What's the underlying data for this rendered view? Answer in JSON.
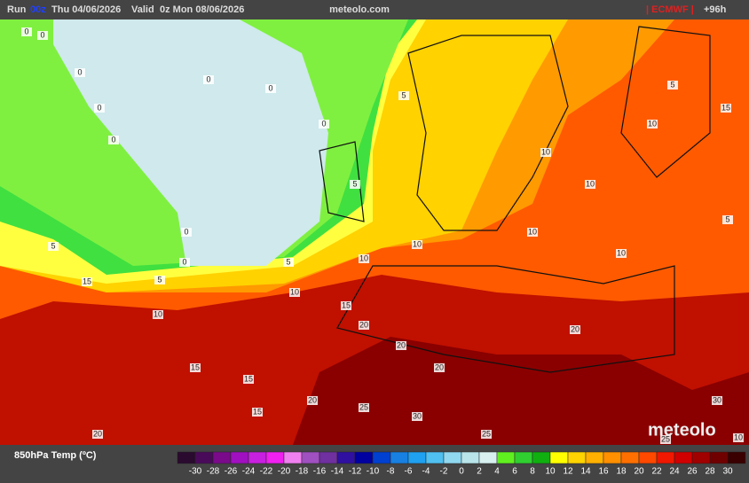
{
  "header": {
    "run": "Run",
    "run_time": "00z",
    "run_date": "Thu 04/06/2026",
    "valid": "Valid",
    "valid_date": "0z Mon 08/06/2026",
    "site": "meteolo.com",
    "model": "| ECMWF |",
    "lead": "+96h"
  },
  "map": {
    "contour_labels": [
      0,
      0,
      0,
      0,
      0,
      0,
      0,
      0,
      0,
      0,
      5,
      5,
      5,
      5,
      5,
      10,
      10,
      10,
      10,
      10,
      10,
      10,
      10,
      10,
      15,
      15,
      15,
      15,
      15,
      20,
      20,
      20,
      20,
      20,
      25,
      25,
      30,
      30,
      10,
      5,
      5,
      15,
      20,
      25
    ]
  },
  "watermark": "meteolo",
  "legend": {
    "title": "850hPa Temp (ºC)",
    "colors": [
      "#2a0a2e",
      "#4a0a5a",
      "#7a0a8a",
      "#a010c0",
      "#c820e0",
      "#f020f0",
      "#f080f0",
      "#a050c0",
      "#7030a0",
      "#3010a0",
      "#0000a0",
      "#0040d0",
      "#1880e0",
      "#20a0f0",
      "#50c0f0",
      "#90d8f0",
      "#b8e4ea",
      "#d8f0f0",
      "#60f020",
      "#30d030",
      "#10b010",
      "#ffff00",
      "#ffd400",
      "#ffb000",
      "#ff9000",
      "#ff7000",
      "#ff4800",
      "#f01800",
      "#d00000",
      "#a00000",
      "#700000",
      "#3a0000"
    ],
    "labels": [
      -30,
      -28,
      -26,
      -24,
      -22,
      -20,
      -18,
      -16,
      -14,
      -12,
      -10,
      -8,
      -6,
      -4,
      -2,
      0,
      2,
      4,
      6,
      8,
      10,
      12,
      14,
      16,
      18,
      20,
      22,
      24,
      26,
      28,
      30
    ]
  }
}
